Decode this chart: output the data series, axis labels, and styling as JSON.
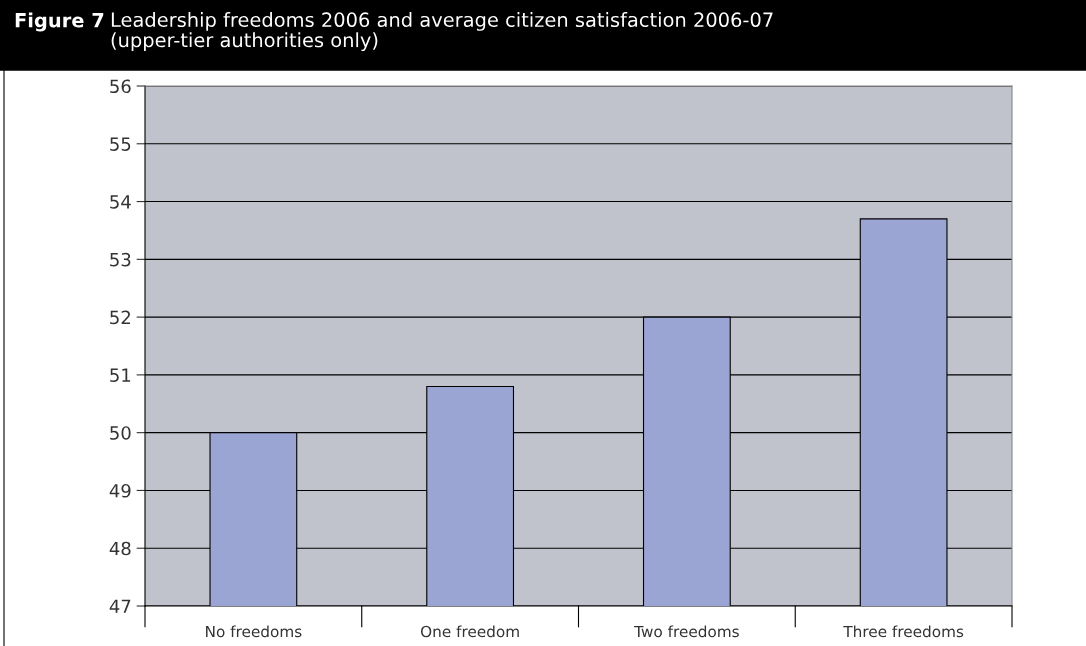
{
  "chart_data": {
    "type": "bar",
    "title": "Figure 7",
    "subtitle": "Leadership freedoms 2006 and average citizen satisfaction 2006-07\n(upper-tier authorities only)",
    "categories": [
      "No freedoms",
      "One freedom",
      "Two freedoms",
      "Three freedoms"
    ],
    "values": [
      50.0,
      50.8,
      52.0,
      53.7
    ],
    "color": "#9aa5d3",
    "ylim": [
      47,
      56
    ],
    "yticks": [
      47,
      48,
      49,
      50,
      51,
      52,
      53,
      54,
      55,
      56
    ],
    "grid": "y"
  }
}
